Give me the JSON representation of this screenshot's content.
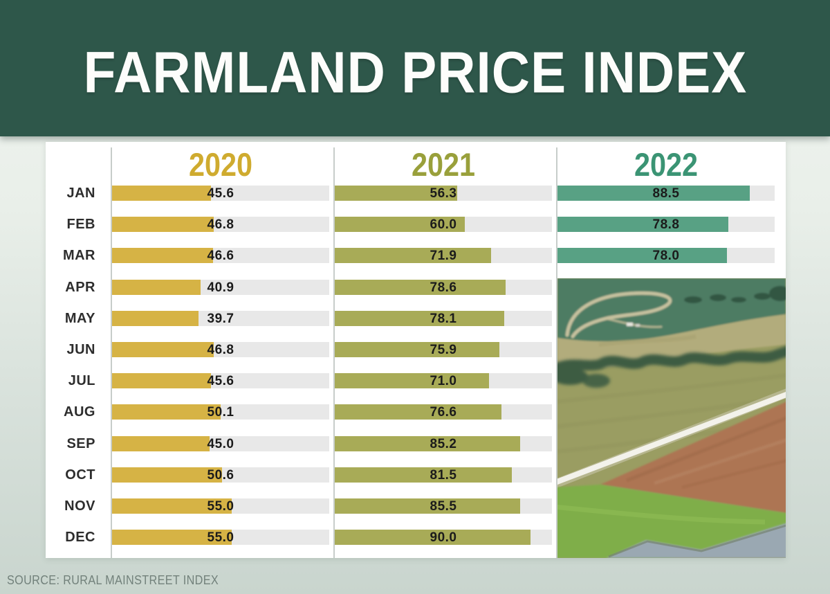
{
  "header": {
    "title": "FARMLAND PRICE INDEX"
  },
  "source": {
    "label": "SOURCE: RURAL MAINSTREET INDEX"
  },
  "colors": {
    "banner_green": "#2e574a",
    "bar_2020": "#d6b345",
    "bar_2021": "#a8ab57",
    "bar_2022": "#58a184",
    "header_2020": "#cfab2f",
    "header_2021": "#99a03b",
    "header_2022": "#3b9474",
    "track_gray": "#e8e8e8",
    "source_text": "#72817b"
  },
  "photo": {
    "alt": "aerial-farmland-photo"
  },
  "chart_data": {
    "type": "bar",
    "orientation": "horizontal",
    "title": "FARMLAND PRICE INDEX",
    "source": "RURAL MAINSTREET INDEX",
    "xlim": [
      0,
      100
    ],
    "grid": false,
    "legend_position": "column headers",
    "value_label_format": "one decimal place, bold, centered in track",
    "categories": [
      "JAN",
      "FEB",
      "MAR",
      "APR",
      "MAY",
      "JUN",
      "JUL",
      "AUG",
      "SEP",
      "OCT",
      "NOV",
      "DEC"
    ],
    "series": [
      {
        "name": "2020",
        "color": "#d6b345",
        "header_color": "#cfab2f",
        "values": [
          45.6,
          46.8,
          46.6,
          40.9,
          39.7,
          46.8,
          45.6,
          50.1,
          45.0,
          50.6,
          55.0,
          55.0
        ]
      },
      {
        "name": "2021",
        "color": "#a8ab57",
        "header_color": "#99a03b",
        "values": [
          56.3,
          60.0,
          71.9,
          78.6,
          78.1,
          75.9,
          71.0,
          76.6,
          85.2,
          81.5,
          85.5,
          90.0
        ]
      },
      {
        "name": "2022",
        "color": "#58a184",
        "header_color": "#3b9474",
        "values": [
          88.5,
          78.8,
          78.0,
          null,
          null,
          null,
          null,
          null,
          null,
          null,
          null,
          null
        ],
        "note": "APR-DEC area covered by aerial farmland photo"
      }
    ]
  }
}
